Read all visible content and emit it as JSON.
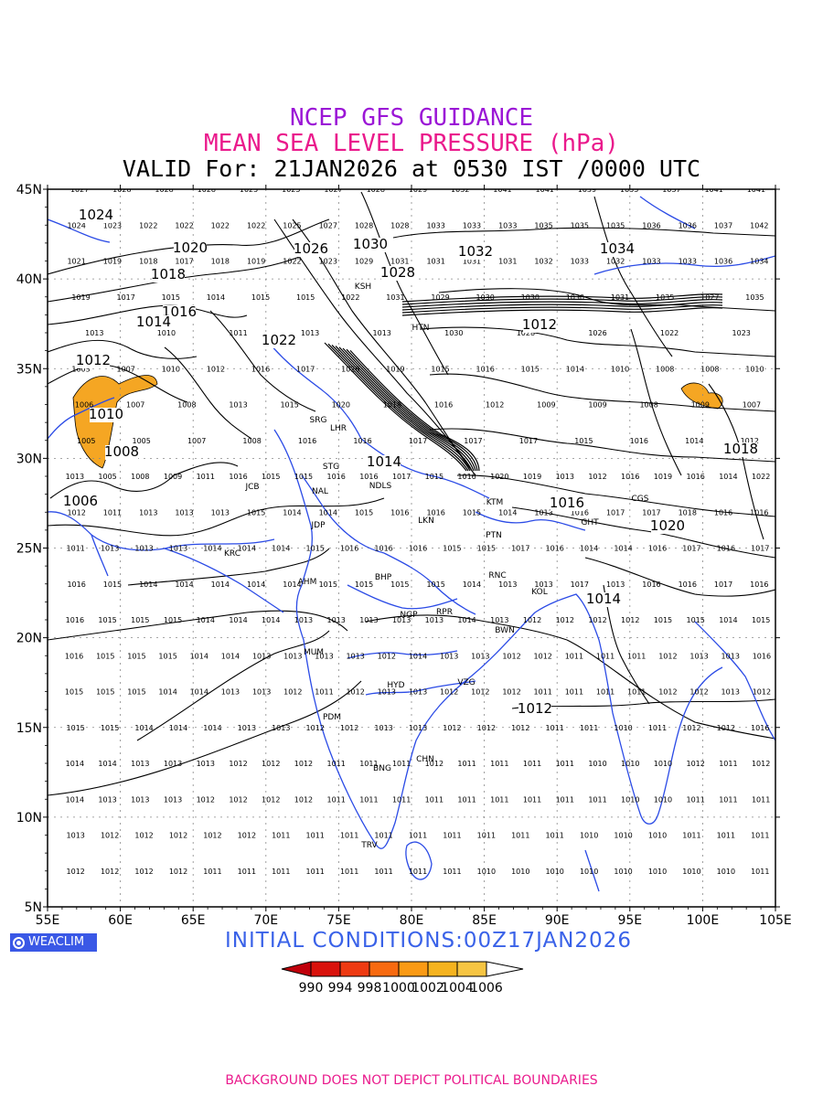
{
  "titles": {
    "line1": "NCEP GFS GUIDANCE",
    "line2": "MEAN SEA LEVEL PRESSURE (hPa)",
    "line3": "VALID For: 21JAN2026 at 0530 IST /0000 UTC"
  },
  "colors": {
    "line1": "#9b16d6",
    "line2": "#ea1a8c",
    "line3": "#000000",
    "coast": "#2b4be6",
    "isobar": "#000000",
    "low_fill": "#f5a623",
    "init_text": "#3a62e8",
    "footer_text": "#ea1a8c"
  },
  "axes": {
    "lat_labels": [
      "45N",
      "40N",
      "35N",
      "30N",
      "25N",
      "20N",
      "15N",
      "10N",
      "5N"
    ],
    "lon_labels": [
      "55E",
      "60E",
      "65E",
      "70E",
      "75E",
      "80E",
      "85E",
      "90E",
      "95E",
      "100E",
      "105E"
    ]
  },
  "branding": {
    "label": "WEACLIM",
    "icon": "globe-logo-icon"
  },
  "initial_conditions": "INITIAL  CONDITIONS:00Z17JAN2026",
  "colorbar": {
    "labels": [
      "990",
      "994",
      "998",
      "1000",
      "1002",
      "1004",
      "1006"
    ],
    "colors": [
      "#c0000b",
      "#d9120c",
      "#ee3a12",
      "#f86a10",
      "#fa9a14",
      "#f5b31f",
      "#f6c543"
    ]
  },
  "footer": "BACKGROUND DOES NOT DEPICT POLITICAL BOUNDARIES",
  "cities": [
    "SRG",
    "LHR",
    "STG",
    "JCB",
    "NAL",
    "NDLS",
    "JDP",
    "LKN",
    "PTN",
    "KRC",
    "BHP",
    "RNC",
    "AHM",
    "KOL",
    "NGP",
    "RPR",
    "BWN",
    "MUM",
    "HYD",
    "VZG",
    "PDM",
    "CHN",
    "BNG",
    "TRV",
    "KTM",
    "GHT",
    "HTN",
    "KSH",
    "CGS"
  ],
  "isobar_labels": [
    "1024",
    "1020",
    "1018",
    "1016",
    "1014",
    "1012",
    "1010",
    "1008",
    "1006",
    "1026",
    "1028",
    "1030",
    "1032",
    "1034",
    "1022",
    "1012",
    "1014",
    "1016",
    "1018",
    "1020",
    "1014",
    "1012"
  ],
  "station_values": {
    "row_45": [
      "1027",
      "1028",
      "1028",
      "1028",
      "1025",
      "1025",
      "1027",
      "1028",
      "1029",
      "1032",
      "1041",
      "1041",
      "1039",
      "1035",
      "1037",
      "1041",
      "1041"
    ],
    "row_43": [
      "1024",
      "1023",
      "1022",
      "1022",
      "1022",
      "1022",
      "1025",
      "1027",
      "1028",
      "1028",
      "1033",
      "1033",
      "1033",
      "1035",
      "1035",
      "1035",
      "1036",
      "1036",
      "1037",
      "1042"
    ],
    "row_41": [
      "1021",
      "1019",
      "1018",
      "1017",
      "1018",
      "1019",
      "1022",
      "1023",
      "1029",
      "1031",
      "1031",
      "1031",
      "1031",
      "1032",
      "1033",
      "1032",
      "1033",
      "1033",
      "1036",
      "1034"
    ],
    "row_39": [
      "1019",
      "1017",
      "1015",
      "1014",
      "1015",
      "1015",
      "1022",
      "1031",
      "1029",
      "1030",
      "1030",
      "1030",
      "1031",
      "1035",
      "1027",
      "1035"
    ],
    "row_37": [
      "1013",
      "1010",
      "1011",
      "1013",
      "1013",
      "1030",
      "1028",
      "1026",
      "1022",
      "1023"
    ],
    "row_35": [
      "1003",
      "1007",
      "1010",
      "1012",
      "1016",
      "1017",
      "1026",
      "1019",
      "1015",
      "1016",
      "1015",
      "1014",
      "1010",
      "1008",
      "1008",
      "1010"
    ],
    "row_33": [
      "1006",
      "1007",
      "1008",
      "1013",
      "1015",
      "1020",
      "1018",
      "1016",
      "1012",
      "1009",
      "1009",
      "1008",
      "1009",
      "1007"
    ],
    "row_31": [
      "1005",
      "1005",
      "1007",
      "1008",
      "1016",
      "1016",
      "1017",
      "1017",
      "1017",
      "1015",
      "1016",
      "1014",
      "1012"
    ],
    "row_29": [
      "1013",
      "1005",
      "1008",
      "1009",
      "1011",
      "1016",
      "1015",
      "1015",
      "1016",
      "1016",
      "1017",
      "1015",
      "1016",
      "1020",
      "1019",
      "1013",
      "1012",
      "1016",
      "1019",
      "1016",
      "1014",
      "1022"
    ],
    "row_27": [
      "1012",
      "1011",
      "1013",
      "1013",
      "1013",
      "1015",
      "1014",
      "1014",
      "1015",
      "1016",
      "1016",
      "1015",
      "1014",
      "1013",
      "1016",
      "1017",
      "1017",
      "1018",
      "1016",
      "1016"
    ],
    "row_25": [
      "1011",
      "1013",
      "1013",
      "1013",
      "1014",
      "1014",
      "1014",
      "1015",
      "1016",
      "1016",
      "1016",
      "1015",
      "1015",
      "1017",
      "1016",
      "1014",
      "1014",
      "1016",
      "1017",
      "1016",
      "1017"
    ],
    "row_23": [
      "1016",
      "1015",
      "1014",
      "1014",
      "1014",
      "1014",
      "1014",
      "1015",
      "1015",
      "1015",
      "1015",
      "1014",
      "1013",
      "1013",
      "1017",
      "1013",
      "1016",
      "1016",
      "1017",
      "1016"
    ],
    "row_21": [
      "1016",
      "1015",
      "1015",
      "1015",
      "1014",
      "1014",
      "1014",
      "1013",
      "1013",
      "1013",
      "1013",
      "1013",
      "1014",
      "1013",
      "1012",
      "1012",
      "1012",
      "1012",
      "1015",
      "1015",
      "1014",
      "1015"
    ],
    "row_19": [
      "1016",
      "1015",
      "1015",
      "1015",
      "1014",
      "1014",
      "1013",
      "1013",
      "1013",
      "1013",
      "1012",
      "1014",
      "1013",
      "1013",
      "1012",
      "1012",
      "1011",
      "1011",
      "1011",
      "1012",
      "1013",
      "1013",
      "1016"
    ],
    "row_17": [
      "1015",
      "1015",
      "1015",
      "1014",
      "1014",
      "1013",
      "1013",
      "1012",
      "1011",
      "1012",
      "1013",
      "1013",
      "1012",
      "1012",
      "1012",
      "1011",
      "1011",
      "1011",
      "1011",
      "1012",
      "1012",
      "1013",
      "1012"
    ],
    "row_15": [
      "1015",
      "1015",
      "1014",
      "1014",
      "1014",
      "1013",
      "1013",
      "1012",
      "1012",
      "1013",
      "1013",
      "1012",
      "1012",
      "1012",
      "1011",
      "1011",
      "1010",
      "1011",
      "1012",
      "1012",
      "1016"
    ],
    "row_13": [
      "1014",
      "1014",
      "1013",
      "1013",
      "1013",
      "1012",
      "1012",
      "1012",
      "1011",
      "1011",
      "1011",
      "1012",
      "1011",
      "1011",
      "1011",
      "1011",
      "1010",
      "1010",
      "1010",
      "1012",
      "1011",
      "1012"
    ],
    "row_11": [
      "1014",
      "1013",
      "1013",
      "1013",
      "1012",
      "1012",
      "1012",
      "1012",
      "1011",
      "1011",
      "1011",
      "1011",
      "1011",
      "1011",
      "1011",
      "1011",
      "1011",
      "1010",
      "1010",
      "1011",
      "1011",
      "1011"
    ],
    "row_9": [
      "1013",
      "1012",
      "1012",
      "1012",
      "1012",
      "1012",
      "1011",
      "1011",
      "1011",
      "1011",
      "1011",
      "1011",
      "1011",
      "1011",
      "1011",
      "1010",
      "1010",
      "1010",
      "1011",
      "1011",
      "1011"
    ],
    "row_7": [
      "1012",
      "1012",
      "1012",
      "1012",
      "1011",
      "1011",
      "1011",
      "1011",
      "1011",
      "1011",
      "1011",
      "1011",
      "1010",
      "1010",
      "1010",
      "1010",
      "1010",
      "1010",
      "1010",
      "1010",
      "1011"
    ]
  }
}
